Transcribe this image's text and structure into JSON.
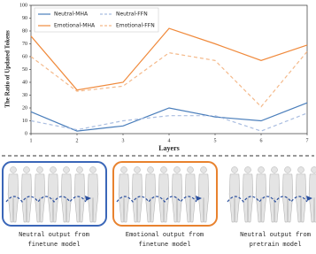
{
  "chart_data": {
    "type": "line",
    "x_label": "Layers",
    "y_label": "The Ratio of Updated Tokens",
    "x": [
      1,
      2,
      3,
      4,
      5,
      6,
      7
    ],
    "xlim": [
      1,
      7
    ],
    "xticks": [
      1,
      2,
      3,
      4,
      5,
      6,
      7
    ],
    "ylim": [
      0,
      100
    ],
    "yticks": [
      0,
      10,
      20,
      30,
      40,
      50,
      60,
      70,
      80,
      90,
      100
    ],
    "legend": "upper left",
    "series": [
      {
        "name": "Neutral-MHA",
        "color": "#4a7ebb",
        "linestyle": "solid",
        "values": [
          17,
          2,
          6,
          20,
          13,
          10,
          24
        ]
      },
      {
        "name": "Neutral-FFN",
        "color": "#a9bde0",
        "linestyle": "dashed",
        "values": [
          10,
          3,
          10,
          14,
          14,
          2,
          16
        ]
      },
      {
        "name": "Emotional-MHA",
        "color": "#f08a3c",
        "linestyle": "solid",
        "values": [
          76,
          34,
          40,
          82,
          70,
          57,
          69
        ]
      },
      {
        "name": "Emotional-FFN",
        "color": "#f4b98a",
        "linestyle": "dashed",
        "values": [
          60,
          33,
          37,
          63,
          57,
          21,
          64
        ]
      }
    ]
  },
  "panels": [
    {
      "caption": [
        "Neutral output from",
        "finetune model"
      ],
      "border": "#3a66b8"
    },
    {
      "caption": [
        "Emotional output from",
        "finetune model"
      ],
      "border": "#e8822e"
    },
    {
      "caption": [
        "Neutral output from",
        "pretrain model"
      ],
      "border": null
    }
  ]
}
